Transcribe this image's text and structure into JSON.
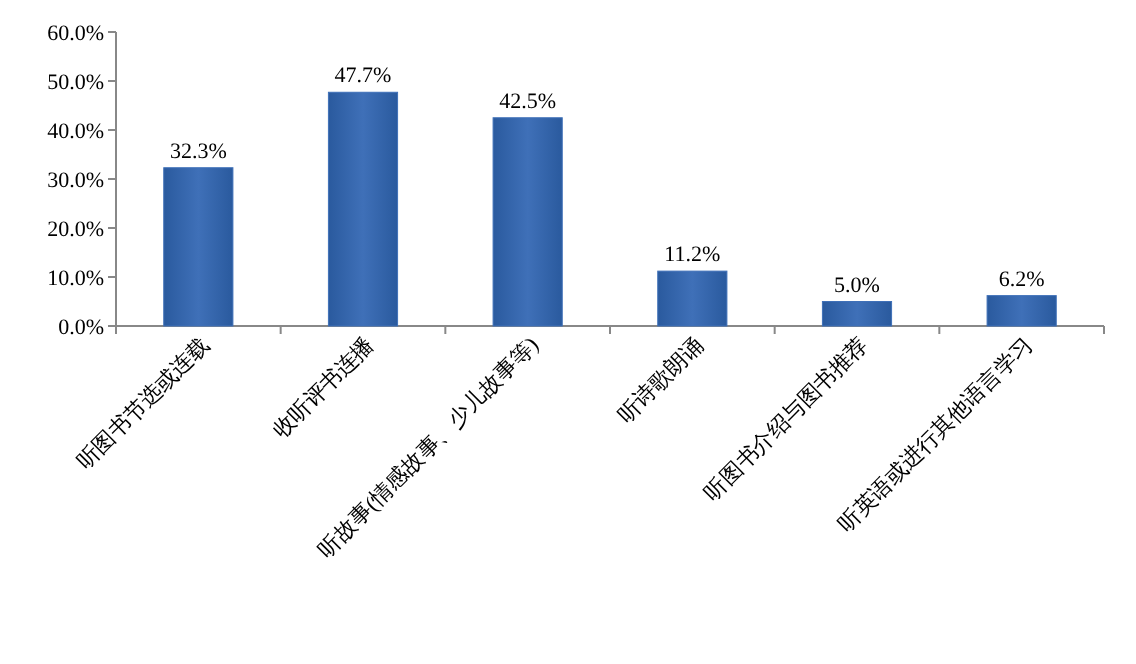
{
  "chart_data": {
    "type": "bar",
    "categories": [
      "听图书节选或连载",
      "收听评书连播",
      "听故事(情感故事、少儿故事等)",
      "听诗歌朗诵",
      "听图书介绍与图书推荐",
      "听英语或进行其他语言学习"
    ],
    "values": [
      32.3,
      47.7,
      42.5,
      11.2,
      5.0,
      6.2
    ],
    "value_labels": [
      "32.3%",
      "47.7%",
      "42.5%",
      "11.2%",
      "5.0%",
      "6.2%"
    ],
    "color": "#3f70b8",
    "ylim": [
      0,
      60
    ],
    "yticks": [
      {
        "value": 0,
        "label": "0.0%"
      },
      {
        "value": 10,
        "label": "10.0%"
      },
      {
        "value": 20,
        "label": "20.0%"
      },
      {
        "value": 30,
        "label": "30.0%"
      },
      {
        "value": 40,
        "label": "40.0%"
      },
      {
        "value": 50,
        "label": "50.0%"
      },
      {
        "value": 60,
        "label": "60.0%"
      }
    ],
    "grid": false
  }
}
